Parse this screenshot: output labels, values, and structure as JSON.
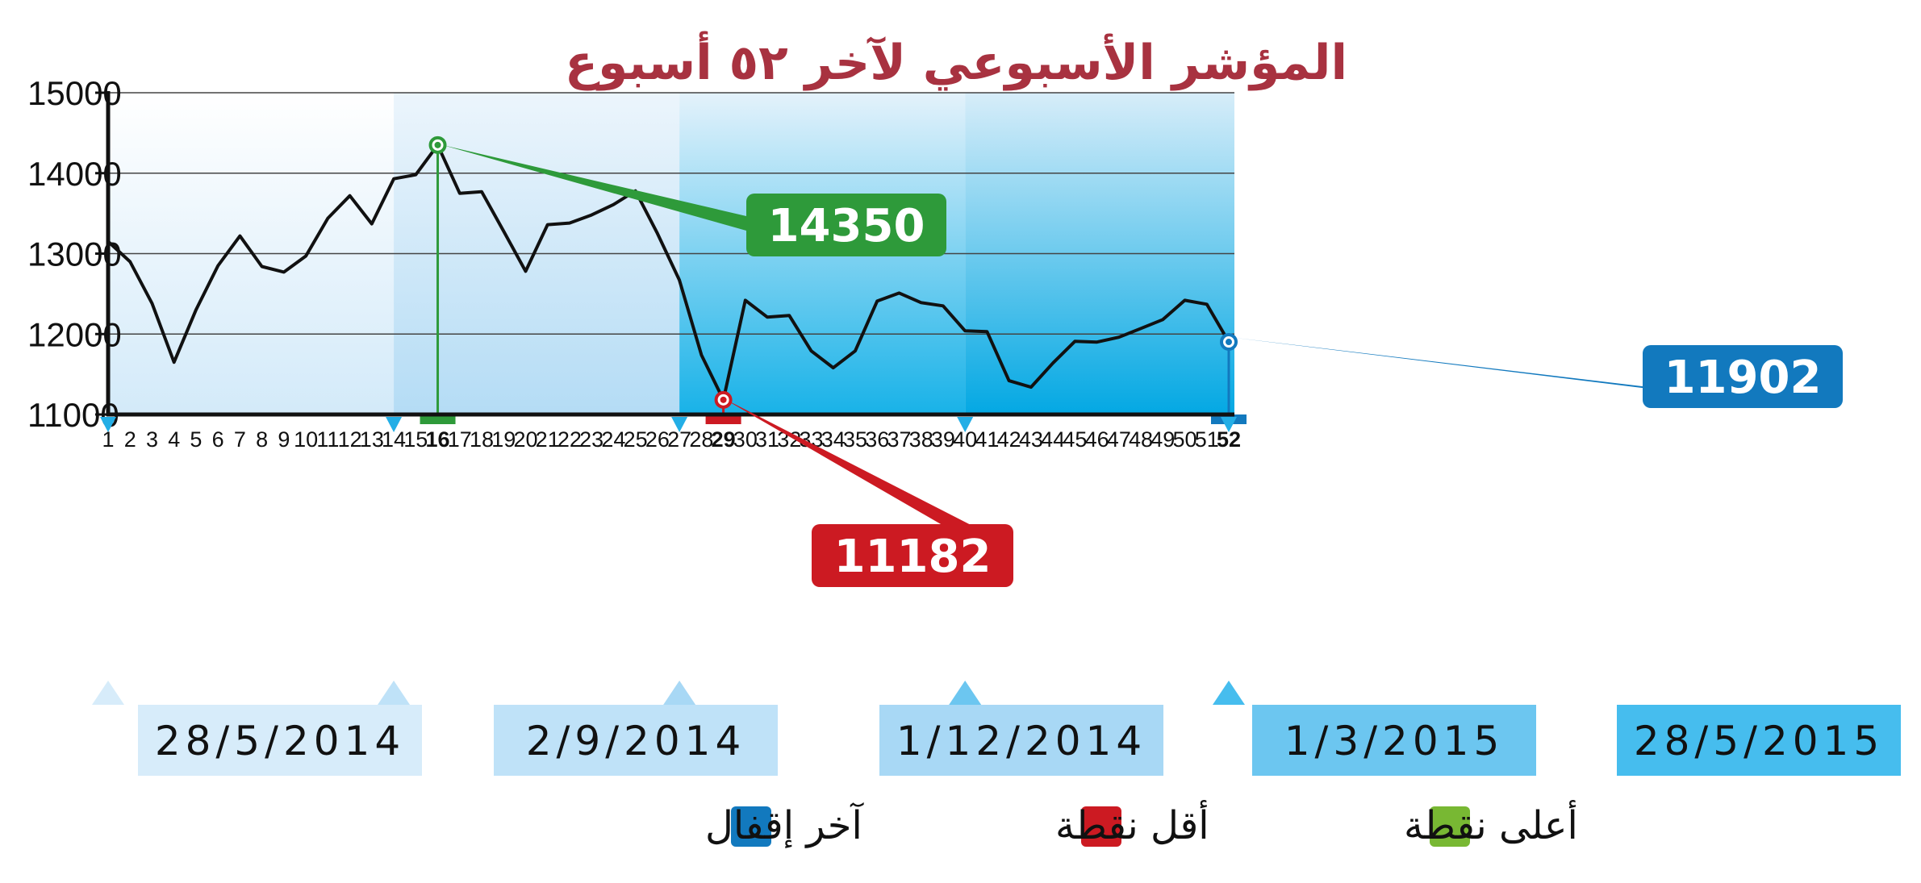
{
  "chart_data": {
    "type": "line",
    "title": "المؤشر الأسبوعي لآخر ٥٢ أسبوع",
    "xlabel": "",
    "ylabel": "",
    "ylim": [
      11000,
      15000
    ],
    "yticks": [
      "15000",
      "14000",
      "13000",
      "12000",
      "11000"
    ],
    "grid": true,
    "x": [
      1,
      2,
      3,
      4,
      5,
      6,
      7,
      8,
      9,
      10,
      11,
      12,
      13,
      14,
      15,
      16,
      17,
      18,
      19,
      20,
      21,
      22,
      23,
      24,
      25,
      26,
      27,
      28,
      29,
      30,
      31,
      32,
      33,
      34,
      35,
      36,
      37,
      38,
      39,
      40,
      41,
      42,
      43,
      44,
      45,
      46,
      47,
      48,
      49,
      50,
      51,
      52
    ],
    "series": [
      {
        "values": [
          13150,
          12900,
          12380,
          11650,
          12300,
          12850,
          13220,
          12840,
          12770,
          12970,
          13440,
          13720,
          13370,
          13930,
          13980,
          14350,
          13750,
          13770,
          13280,
          12780,
          13360,
          13380,
          13480,
          13610,
          13780,
          13250,
          12670,
          11740,
          11182,
          12420,
          12210,
          12230,
          11790,
          11580,
          11790,
          12410,
          12510,
          12390,
          12350,
          12040,
          12030,
          11420,
          11340,
          11640,
          11910,
          11900,
          11960,
          12070,
          12180,
          12420,
          12370,
          11902
        ]
      }
    ],
    "annotations": [
      {
        "type": "max",
        "week": 16,
        "value": "14350",
        "color": "#2e9a3a"
      },
      {
        "type": "min",
        "week": 29,
        "value": "11182",
        "color": "#cc1a22"
      },
      {
        "type": "last",
        "week": 52,
        "value": "11902",
        "color": "#1279be"
      }
    ],
    "date_markers": [
      {
        "week": 1,
        "label": "28/5/2014"
      },
      {
        "week": 14,
        "label": "2/9/2014"
      },
      {
        "week": 27,
        "label": "1/12/2014"
      },
      {
        "week": 40,
        "label": "1/3/2015"
      },
      {
        "week": 52,
        "label": "28/5/2015"
      }
    ],
    "legend": [
      {
        "label": "أعلى نقطة",
        "color": "#78b833"
      },
      {
        "label": "أقل نقطة",
        "color": "#cc1a22"
      },
      {
        "label": "آخر إقفال",
        "color": "#1279be"
      }
    ],
    "legend_position": "bottom"
  }
}
